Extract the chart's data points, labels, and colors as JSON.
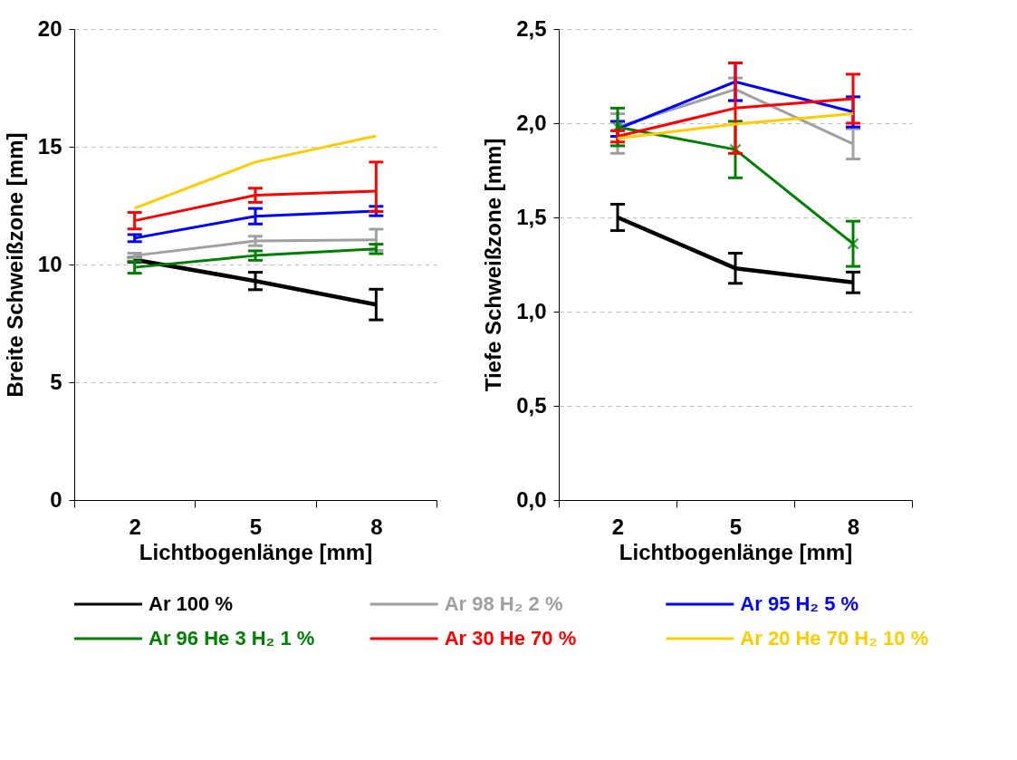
{
  "chart_data": [
    {
      "type": "line",
      "categories": [
        "2",
        "5",
        "8"
      ],
      "xlabel": "Lichtbogenlänge [mm]",
      "ylabel": "Breite Schweißzone [mm]",
      "ylim": [
        0,
        20
      ],
      "yticks": [
        0,
        5,
        10,
        15,
        20
      ],
      "grid": "y",
      "legend": "bottom",
      "series": [
        {
          "name": "Ar 100 %",
          "color": "#000000",
          "values": [
            10.2,
            9.3,
            8.3
          ],
          "errors": [
            0.1,
            0.37,
            0.65
          ]
        },
        {
          "name": "Ar 98 H₂ 2 %",
          "color": "#a0a0a0",
          "values": [
            10.38,
            11.0,
            11.05
          ],
          "errors": [
            0.1,
            0.2,
            0.45
          ]
        },
        {
          "name": "Ar 95 H₂ 5 %",
          "color": "#0000ff",
          "values": [
            11.12,
            12.05,
            12.27
          ],
          "errors": [
            0.15,
            0.33,
            0.2
          ]
        },
        {
          "name": "Ar 96 He 3 H₂ 1 %",
          "color": "#008000",
          "values": [
            9.88,
            10.38,
            10.66
          ],
          "errors": [
            0.25,
            0.2,
            0.2
          ]
        },
        {
          "name": "Ar 30 He 70 %",
          "color": "#ff0000",
          "values": [
            11.86,
            12.94,
            13.12
          ],
          "errors": [
            0.35,
            0.3,
            [
              12.25,
              14.35
            ]
          ]
        },
        {
          "name": "Ar 20 He 70 H₂ 10 %",
          "color": "#ffcc00",
          "values": [
            12.39,
            14.35,
            15.46
          ]
        }
      ]
    },
    {
      "type": "line",
      "categories": [
        "2",
        "5",
        "8"
      ],
      "xlabel": "Lichtbogenlänge [mm]",
      "ylabel": "Tiefe Schweißzone [mm]",
      "ylim": [
        0,
        2.5
      ],
      "yticks": [
        {
          "value": 0,
          "label": "0,0"
        },
        {
          "value": 0.5,
          "label": "0,5"
        },
        {
          "value": 1,
          "label": "1,0"
        },
        {
          "value": 1.5,
          "label": "1,5"
        },
        {
          "value": 2,
          "label": "2,0"
        },
        {
          "value": 2.5,
          "label": "2,5"
        }
      ],
      "grid": "y",
      "series": [
        {
          "name": "Ar 100 %",
          "color": "#000000",
          "values": [
            1.5,
            1.23,
            1.155
          ],
          "errors": [
            0.07,
            0.08,
            0.055
          ]
        },
        {
          "name": "Ar 98 H₂ 2 %",
          "color": "#a0a0a0",
          "values": [
            1.98,
            2.18,
            1.89
          ],
          "errors": [
            [
              1.84,
              2.05
            ],
            0.06,
            0.08
          ]
        },
        {
          "name": "Ar 95 H₂ 5 %",
          "color": "#0000ff",
          "values": [
            1.97,
            2.22,
            2.06
          ],
          "errors": [
            0.04,
            0.1,
            0.08
          ]
        },
        {
          "name": "Ar 96 He 3 H₂ 1 %",
          "color": "#008000",
          "marker": "cross",
          "values": [
            1.98,
            1.86,
            1.36
          ],
          "errors": [
            0.1,
            0.15,
            0.12
          ]
        },
        {
          "name": "Ar 30 He 70 %",
          "color": "#ff0000",
          "values": [
            1.93,
            2.08,
            2.13
          ],
          "errors": [
            0.03,
            0.24,
            0.13
          ]
        },
        {
          "name": "Ar 20 He 70 H₂ 10 %",
          "color": "#ffcc00",
          "values": [
            1.92,
            1.995,
            2.05
          ]
        }
      ]
    }
  ]
}
